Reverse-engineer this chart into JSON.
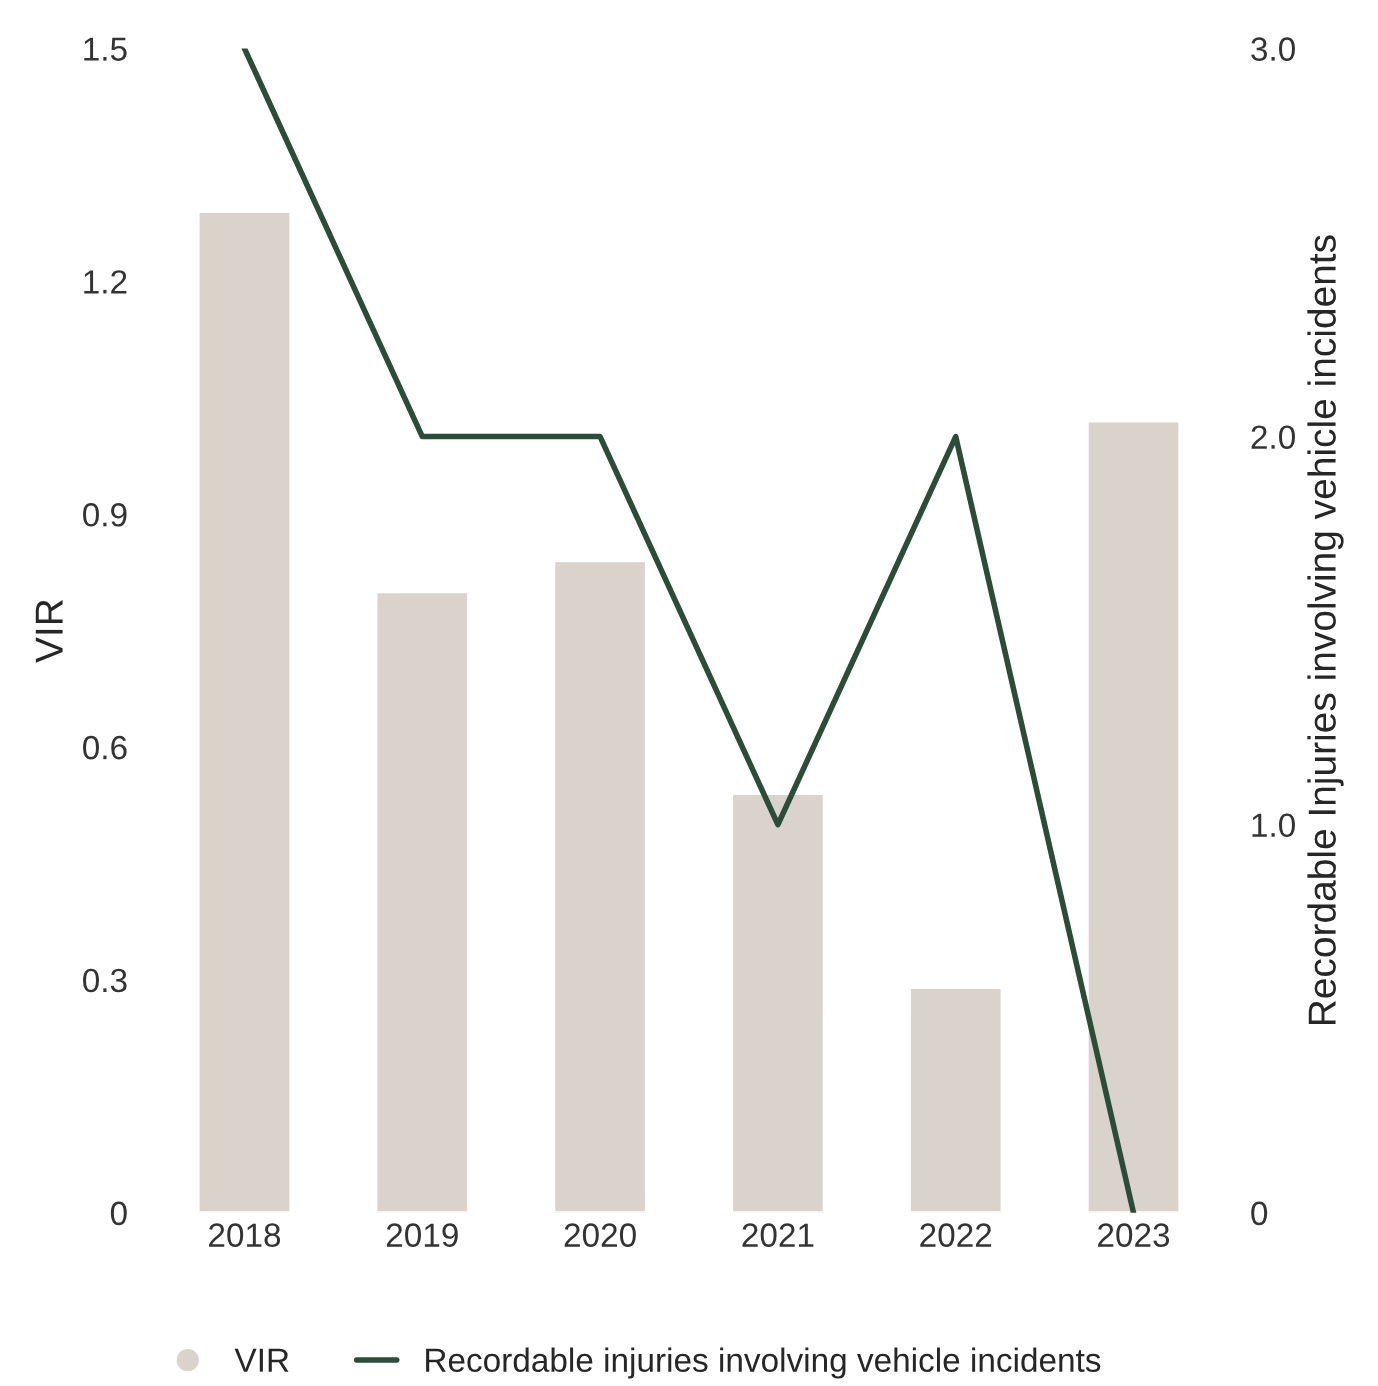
{
  "chart_data": {
    "type": "bar",
    "categories": [
      "2018",
      "2019",
      "2020",
      "2021",
      "2022",
      "2023"
    ],
    "ylabel": "VIR",
    "y2label": "Recordable Injuries involving vehicle incidents",
    "series": [
      {
        "name": "VIR",
        "color": "#d9d3cb",
        "values": [
          1.29,
          0.8,
          0.84,
          0.54,
          0.29,
          1.02
        ]
      },
      {
        "name": "Recordable injuries involving vehicle incidents",
        "type": "line",
        "axis": "y2",
        "color": "#2b4d37",
        "values": [
          3,
          2,
          2,
          1,
          2,
          0
        ]
      }
    ],
    "ylim": [
      0,
      1.5
    ],
    "yticks": [
      {
        "value": 0,
        "label": "0"
      },
      0.3,
      0.6,
      0.9,
      1.2,
      1.5
    ],
    "y2lim": [
      0,
      3
    ],
    "y2ticks": [
      {
        "value": 0,
        "label": "0"
      },
      {
        "value": 1,
        "label": "1.0"
      },
      {
        "value": 2,
        "label": "2.0"
      },
      {
        "value": 3,
        "label": "3.0"
      }
    ],
    "grid": false,
    "legend": "bottom left"
  }
}
